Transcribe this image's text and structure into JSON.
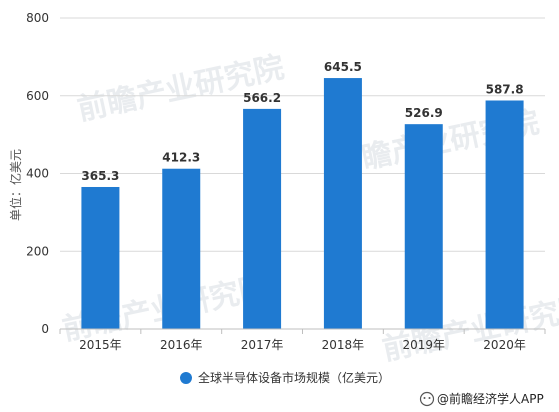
{
  "chart_data": {
    "type": "bar",
    "categories": [
      "2015年",
      "2016年",
      "2017年",
      "2018年",
      "2019年",
      "2020年"
    ],
    "values": [
      365.3,
      412.3,
      566.2,
      645.5,
      526.9,
      587.8
    ],
    "data_labels": [
      "365.3",
      "412.3",
      "566.2",
      "645.5",
      "526.9",
      "587.8"
    ],
    "series": [
      {
        "name": "全球半导体设备市场规模（亿美元）",
        "values": [
          365.3,
          412.3,
          566.2,
          645.5,
          526.9,
          587.8
        ]
      }
    ],
    "ylabel": "单位：亿美元",
    "xlabel": "",
    "ylim": [
      0,
      800
    ],
    "yticks": [
      0,
      200,
      400,
      600,
      800
    ],
    "ytick_labels": [
      "0",
      "200",
      "400",
      "600",
      "800"
    ],
    "grid": true,
    "legend_position": "bottom-center",
    "bar_color": "#1f7ad1"
  },
  "legend": {
    "label": "全球半导体设备市场规模（亿美元）"
  },
  "credit": {
    "label": "@前瞻经济学人APP"
  },
  "watermark": {
    "label": "前瞻产业研究院"
  },
  "colors": {
    "bar": "#1f7ad1",
    "grid": "#d9d9d9",
    "axis": "#bfbfbf"
  }
}
